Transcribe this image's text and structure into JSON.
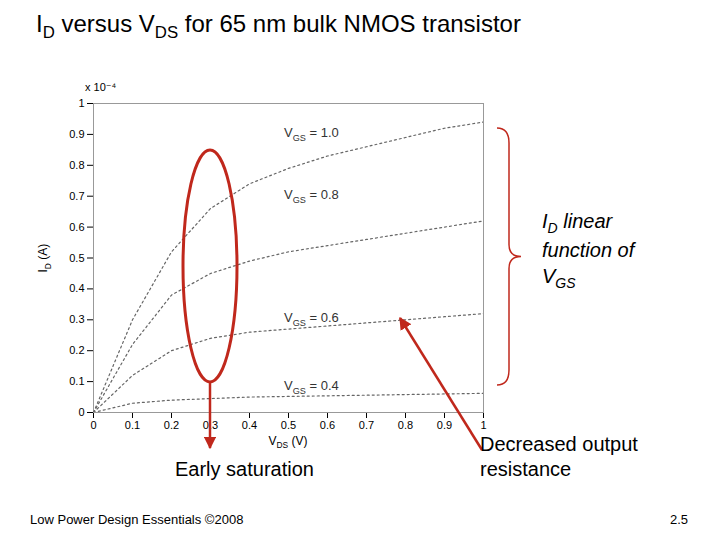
{
  "chart_data": {
    "type": "line",
    "title": "ID versus VDS for 65 nm bulk NMOS transistor",
    "x_label": "VDS (V)",
    "y_label": "ID (A)",
    "y_multiplier": "x 10⁻⁴",
    "x": [
      0,
      0.1,
      0.2,
      0.3,
      0.4,
      0.5,
      0.6,
      0.7,
      0.8,
      0.9,
      1
    ],
    "series": [
      {
        "name": "VGS = 1.0",
        "color": "#666666",
        "line_style": "dotted",
        "values": [
          0,
          0.3,
          0.52,
          0.66,
          0.74,
          0.79,
          0.83,
          0.86,
          0.89,
          0.92,
          0.94
        ]
      },
      {
        "name": "VGS = 0.8",
        "color": "#666666",
        "line_style": "dotted",
        "values": [
          0,
          0.22,
          0.38,
          0.45,
          0.49,
          0.52,
          0.54,
          0.56,
          0.58,
          0.6,
          0.62
        ]
      },
      {
        "name": "VGS = 0.6",
        "color": "#666666",
        "line_style": "dotted",
        "values": [
          0,
          0.12,
          0.2,
          0.24,
          0.26,
          0.27,
          0.28,
          0.29,
          0.3,
          0.31,
          0.32
        ]
      },
      {
        "name": "VGS = 0.4",
        "color": "#666666",
        "line_style": "dotted",
        "values": [
          0,
          0.03,
          0.04,
          0.045,
          0.05,
          0.052,
          0.054,
          0.056,
          0.058,
          0.06,
          0.062
        ]
      }
    ],
    "xlim": [
      0,
      1
    ],
    "ylim": [
      0,
      1
    ],
    "xticks": [
      0,
      0.1,
      0.2,
      0.3,
      0.4,
      0.5,
      0.6,
      0.7,
      0.8,
      0.9,
      1
    ],
    "yticks": [
      0,
      0.1,
      0.2,
      0.3,
      0.4,
      0.5,
      0.6,
      0.7,
      0.8,
      0.9,
      1
    ],
    "grid": false,
    "annotations": [
      "Early saturation",
      "Decreased output resistance",
      "ID linear function of VGS"
    ],
    "footer": "Low Power Design Essentials ©2008",
    "page": "2.5"
  }
}
